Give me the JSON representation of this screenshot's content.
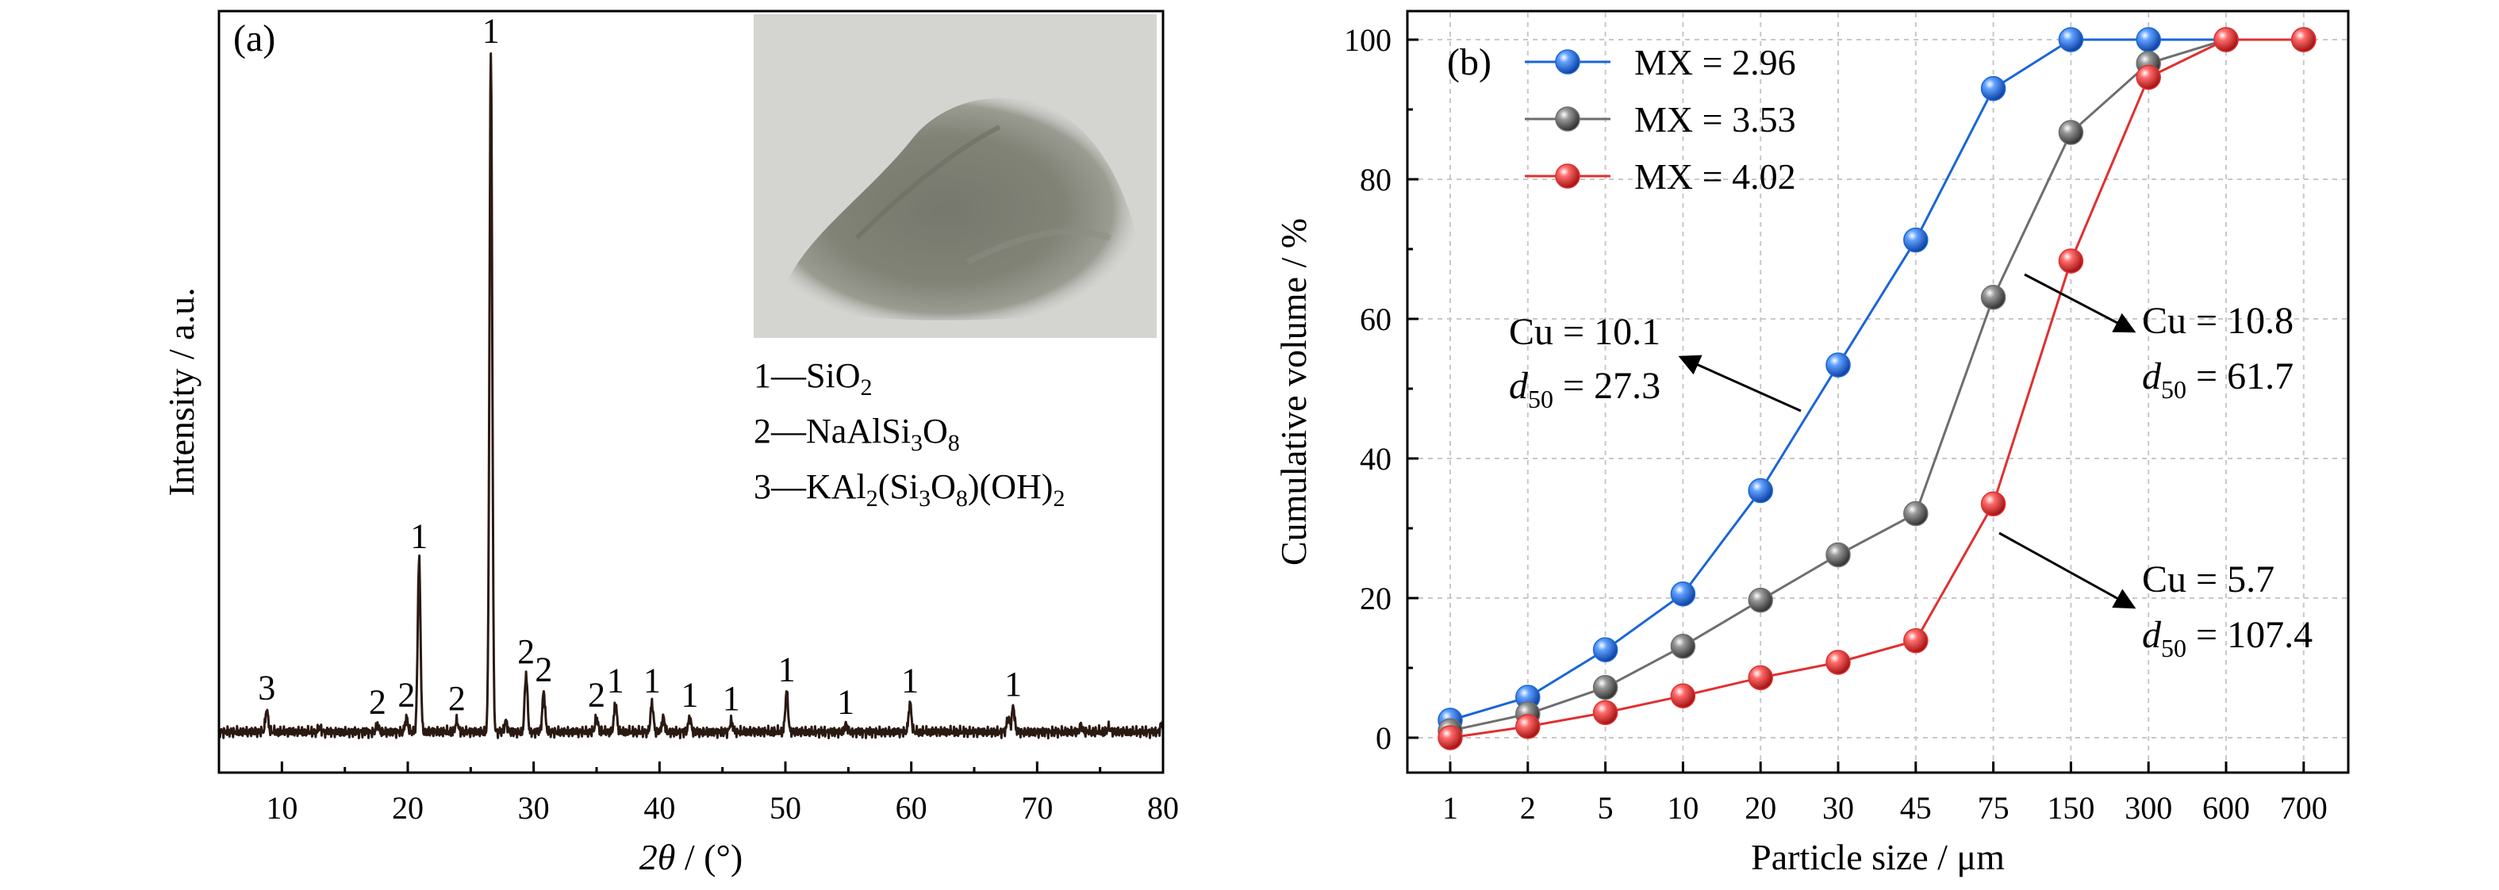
{
  "chart_data": [
    {
      "type": "line",
      "panel_label": "(a)",
      "xlabel_symbol": "2θ",
      "xlabel_unit": " / (°)",
      "ylabel": "Intensity / a.u.",
      "xlim": [
        5,
        80
      ],
      "ylim": [
        0,
        100
      ],
      "x_ticks": [
        10,
        20,
        30,
        40,
        50,
        60,
        70,
        80
      ],
      "baseline": 3,
      "peaks": [
        {
          "x": 8.8,
          "y": 6,
          "label": "3"
        },
        {
          "x": 17.6,
          "y": 4,
          "label": "2"
        },
        {
          "x": 19.9,
          "y": 5,
          "label": "2"
        },
        {
          "x": 20.9,
          "y": 27,
          "label": "1"
        },
        {
          "x": 23.9,
          "y": 4.5,
          "label": "2"
        },
        {
          "x": 26.6,
          "y": 97,
          "label": "1"
        },
        {
          "x": 29.4,
          "y": 11,
          "label": "2"
        },
        {
          "x": 30.8,
          "y": 8.5,
          "label": "2"
        },
        {
          "x": 35.0,
          "y": 5,
          "label": "2"
        },
        {
          "x": 36.5,
          "y": 7,
          "label": "1"
        },
        {
          "x": 39.4,
          "y": 7,
          "label": "1"
        },
        {
          "x": 42.4,
          "y": 5,
          "label": "1"
        },
        {
          "x": 45.7,
          "y": 4.5,
          "label": "1"
        },
        {
          "x": 50.1,
          "y": 8.5,
          "label": "1"
        },
        {
          "x": 54.8,
          "y": 4,
          "label": "1"
        },
        {
          "x": 59.9,
          "y": 7,
          "label": "1"
        },
        {
          "x": 68.1,
          "y": 6.5,
          "label": "1"
        }
      ],
      "minor_peaks": [
        {
          "x": 13.0,
          "y": 3.6
        },
        {
          "x": 27.8,
          "y": 4.5
        },
        {
          "x": 40.3,
          "y": 5
        },
        {
          "x": 67.7,
          "y": 5
        },
        {
          "x": 73.5,
          "y": 3.8
        },
        {
          "x": 75.7,
          "y": 3.6
        },
        {
          "x": 79.9,
          "y": 4
        }
      ],
      "legend": [
        {
          "num": "1",
          "parts": [
            [
              "SiO",
              ""
            ],
            [
              "2",
              "sub"
            ]
          ]
        },
        {
          "num": "2",
          "parts": [
            [
              "NaAlSi",
              ""
            ],
            [
              "3",
              "sub"
            ],
            [
              "O",
              ""
            ],
            [
              "8",
              "sub"
            ]
          ]
        },
        {
          "num": "3",
          "parts": [
            [
              "KAl",
              ""
            ],
            [
              "2",
              "sub"
            ],
            [
              "(Si",
              ""
            ],
            [
              "3",
              "sub"
            ],
            [
              "O",
              ""
            ],
            [
              "8",
              "sub"
            ],
            [
              ")(OH)",
              ""
            ],
            [
              "2",
              "sub"
            ]
          ]
        }
      ],
      "legend_dash": "—",
      "inset": "photo of grey powder sample"
    },
    {
      "type": "line",
      "panel_label": "(b)",
      "xlabel": "Particle size / μm",
      "ylabel": "Cumulative volume / %",
      "categories": [
        "1",
        "2",
        "5",
        "10",
        "20",
        "30",
        "45",
        "75",
        "150",
        "300",
        "600",
        "700"
      ],
      "ylim": [
        0,
        100
      ],
      "y_ticks": [
        0,
        20,
        40,
        60,
        80,
        100
      ],
      "grid": true,
      "legend_position": "top-left",
      "series": [
        {
          "name": "MX = 2.96",
          "color": "#1a66d6",
          "values": [
            2.5,
            5.8,
            12.6,
            20.6,
            35.4,
            53.4,
            71.3,
            93.0,
            100,
            100,
            100,
            100
          ]
        },
        {
          "name": "MX = 3.53",
          "color": "#6e6e6e",
          "values": [
            1.0,
            3.4,
            7.2,
            13.1,
            19.7,
            26.2,
            32.1,
            63.1,
            86.7,
            96.6,
            100,
            100
          ]
        },
        {
          "name": "MX = 4.02",
          "color": "#e03030",
          "values": [
            0.0,
            1.6,
            3.6,
            6.0,
            8.6,
            10.8,
            13.9,
            33.5,
            68.3,
            94.6,
            100,
            100
          ]
        }
      ],
      "annotations": [
        {
          "cu_prefix": "Cu = ",
          "cu": "10.1",
          "d_sym": "d",
          "d_sub": "50",
          "d_value": " = 27.3"
        },
        {
          "cu_prefix": "Cu = ",
          "cu": "10.8",
          "d_sym": "d",
          "d_sub": "50",
          "d_value": " = 61.7"
        },
        {
          "cu_prefix": "Cu = ",
          "cu": "5.7",
          "d_sym": "d",
          "d_sub": "50",
          "d_value": " = 107.4"
        }
      ]
    }
  ]
}
